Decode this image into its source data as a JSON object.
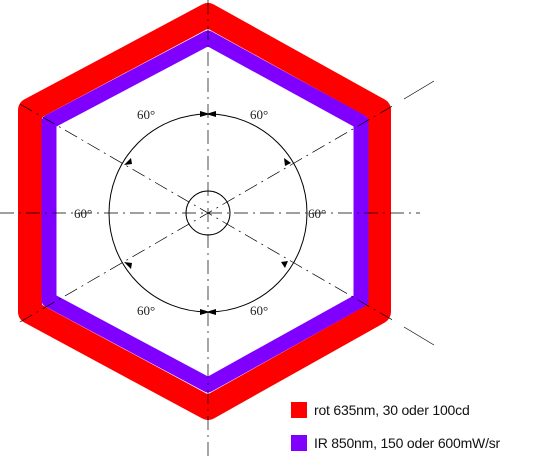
{
  "colors": {
    "red_ring": "#ff0000",
    "ir_ring": "#8000ff",
    "line": "#000000",
    "label": "#222222"
  },
  "angles": [
    {
      "id": "top-left",
      "text": "60°"
    },
    {
      "id": "top-right",
      "text": "60°"
    },
    {
      "id": "left",
      "text": "60°"
    },
    {
      "id": "right",
      "text": "60°"
    },
    {
      "id": "bottom-left",
      "text": "60°"
    },
    {
      "id": "bottom-right",
      "text": "60°"
    }
  ],
  "legend": {
    "items": [
      {
        "label": "rot 635nm, 30 oder 100cd",
        "color": "#ff0000"
      },
      {
        "label": "IR 850nm, 150 oder 600mW/sr",
        "color": "#8000ff"
      }
    ]
  }
}
